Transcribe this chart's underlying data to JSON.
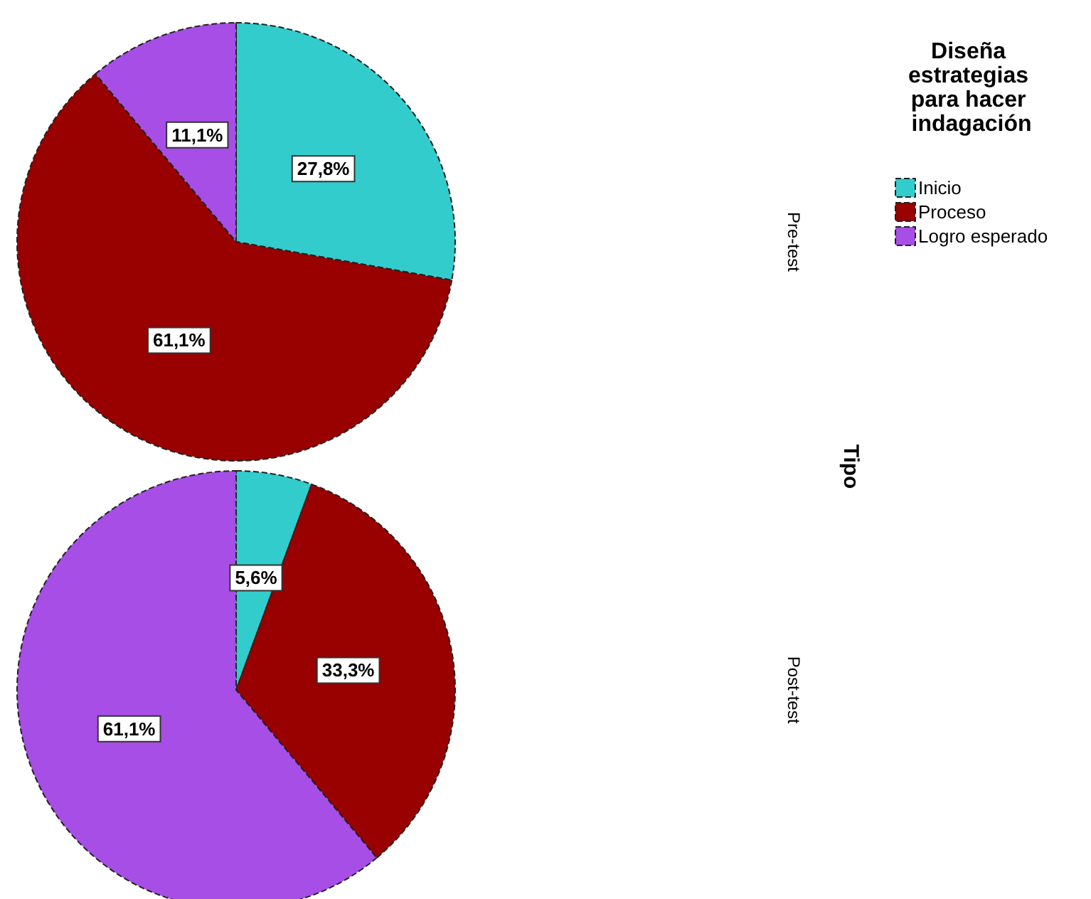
{
  "chart_data": {
    "type": "pie",
    "legend_title": "Diseña estrategias para hacer indagación",
    "annotations": [
      "Tipo"
    ],
    "legend": "right",
    "categories": [
      "Inicio",
      "Proceso",
      "Logro esperado"
    ],
    "colors": [
      "#33cccc",
      "#990000",
      "#a64ee6"
    ],
    "series": [
      {
        "name": "Pre-test",
        "values": [
          27.8,
          61.1,
          11.1
        ],
        "value_labels": [
          "27,8%",
          "61,1%",
          "11,1%"
        ]
      },
      {
        "name": "Post-test",
        "values": [
          5.6,
          33.3,
          61.1
        ],
        "value_labels": [
          "5,6%",
          "33,3%",
          "61,1%"
        ]
      }
    ]
  }
}
